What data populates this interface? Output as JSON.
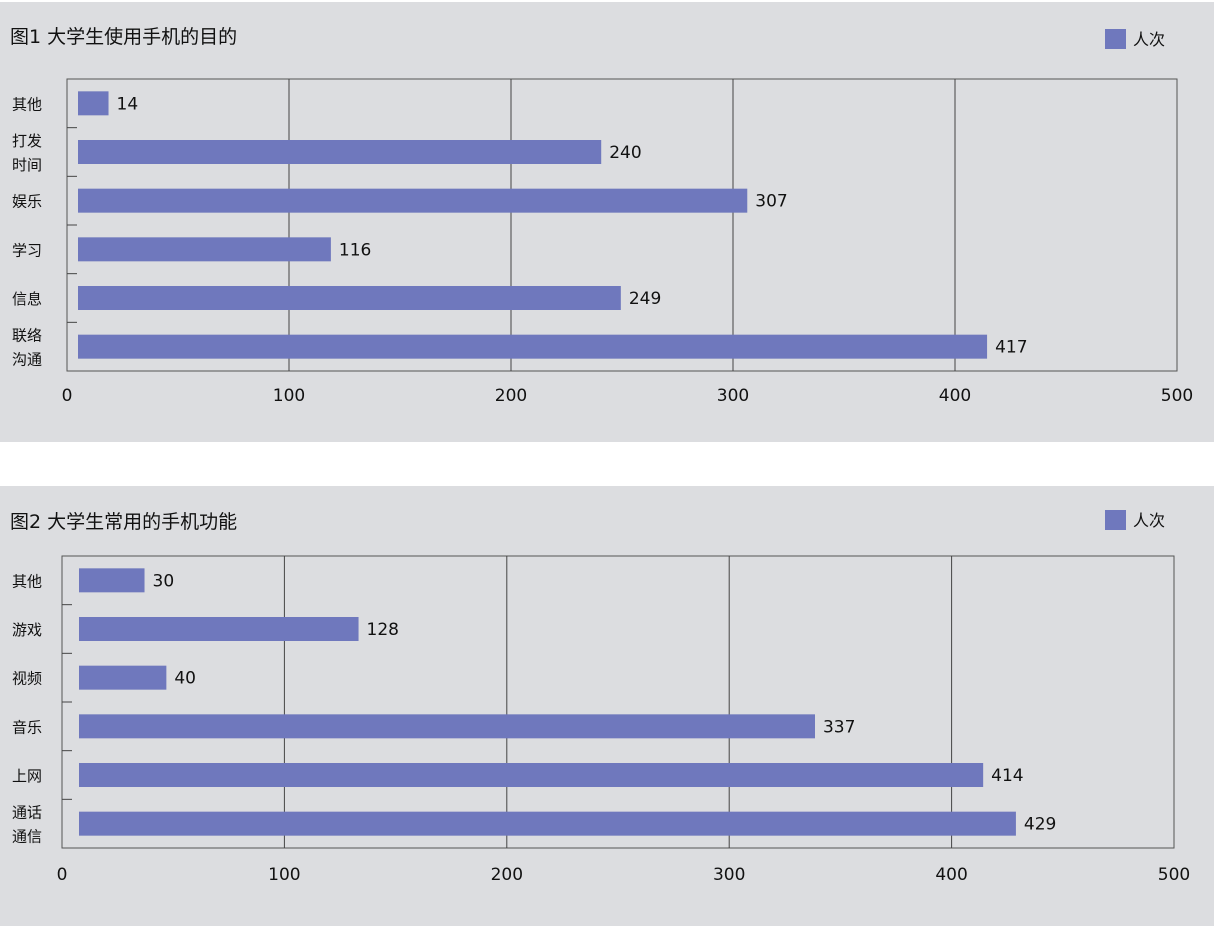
{
  "chart_data": [
    {
      "type": "bar",
      "orientation": "horizontal",
      "title": "图1 大学生使用手机的目的",
      "categories": [
        "其他",
        "打发\n时间",
        "娱乐",
        "学习",
        "信息",
        "联络\n沟通"
      ],
      "series": [
        {
          "name": "人次",
          "values": [
            14,
            240,
            307,
            116,
            249,
            417
          ]
        }
      ],
      "xlim": [
        0,
        500
      ],
      "xticks": [
        0,
        100,
        200,
        300,
        400,
        500
      ],
      "grid": true,
      "legend": "top-right",
      "color": "#6f78bd",
      "background": "#dcdde0"
    },
    {
      "type": "bar",
      "orientation": "horizontal",
      "title": "图2 大学生常用的手机功能",
      "categories": [
        "其他",
        "游戏",
        "视频",
        "音乐",
        "上网",
        "通话\n通信"
      ],
      "series": [
        {
          "name": "人次",
          "values": [
            30,
            128,
            40,
            337,
            414,
            429
          ]
        }
      ],
      "xlim": [
        0,
        500
      ],
      "xticks": [
        0,
        100,
        200,
        300,
        400,
        500
      ],
      "grid": true,
      "legend": "top-right",
      "color": "#6f78bd",
      "background": "#dcdde0"
    }
  ]
}
